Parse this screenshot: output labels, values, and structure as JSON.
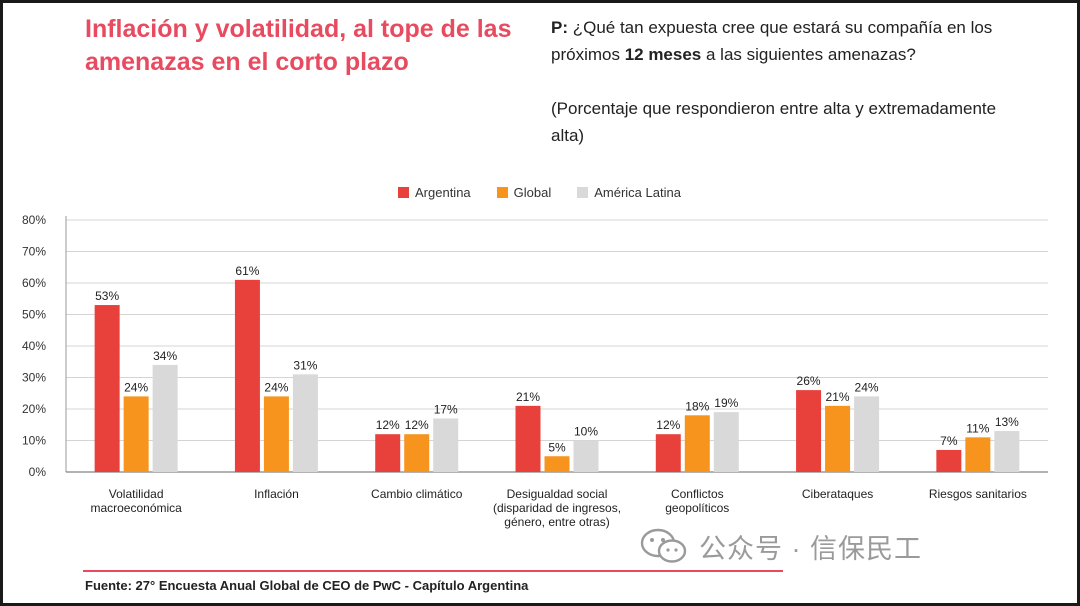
{
  "title": "Inflación y volatilidad, al tope de las amenazas en el corto plazo",
  "question": {
    "prefix": "P:",
    "text_before": " ¿Qué tan expuesta cree que estará su compañía en los próximos ",
    "bold": "12 meses",
    "text_after": " a las siguientes amenazas?"
  },
  "note": "(Porcentaje que respondieron entre alta y extremadamente alta)",
  "source": "Fuente: 27° Encuesta Anual Global de CEO de PwC - Capítulo Argentina",
  "watermark": "公众号 · 信保民工",
  "colors": {
    "argentina": "#e8413c",
    "global": "#f7941d",
    "latam": "#d9d9d9",
    "accent": "#e84a5f"
  },
  "chart_data": {
    "type": "bar",
    "categories": [
      [
        "Volatilidad",
        "macroeconómica"
      ],
      [
        "Inflación"
      ],
      [
        "Cambio climático"
      ],
      [
        "Desigualdad social",
        "(disparidad de ingresos,",
        "género, entre otras)"
      ],
      [
        "Conflictos",
        "geopolíticos"
      ],
      [
        "Ciberataques"
      ],
      [
        "Riesgos sanitarios"
      ]
    ],
    "series": [
      {
        "name": "Argentina",
        "values": [
          53,
          61,
          12,
          21,
          12,
          26,
          7
        ],
        "labels": [
          "53%",
          "61%",
          "12%",
          "21%",
          "12%",
          "26%",
          "7%"
        ]
      },
      {
        "name": "Global",
        "values": [
          24,
          24,
          12,
          5,
          18,
          21,
          11
        ],
        "labels": [
          "24%",
          "24%",
          "12%",
          "5%",
          "18%",
          "21%",
          "11%"
        ]
      },
      {
        "name": "América Latina",
        "values": [
          34,
          31,
          17,
          10,
          19,
          24,
          13
        ],
        "labels": [
          "34%",
          "31%",
          "17%",
          "10%",
          "19%",
          "24%",
          "13%"
        ]
      }
    ],
    "yticks": [
      "0%",
      "10%",
      "20%",
      "30%",
      "40%",
      "50%",
      "60%",
      "70%",
      "80%"
    ],
    "ylim": [
      0,
      80
    ],
    "grid": true,
    "legend_position": "top"
  }
}
